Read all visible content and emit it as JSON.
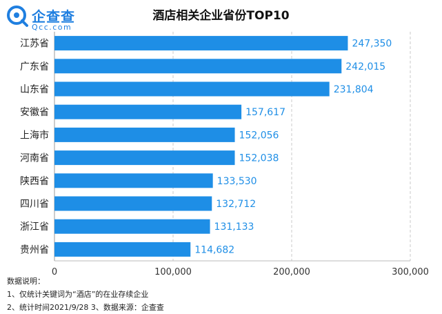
{
  "logo": {
    "name": "企查查",
    "sub": "Qcc.com"
  },
  "title": "酒店相关企业省份TOP10",
  "chart_data": {
    "type": "bar",
    "orientation": "horizontal",
    "title": "酒店相关企业省份TOP10",
    "categories": [
      "江苏省",
      "广东省",
      "山东省",
      "安徽省",
      "上海市",
      "河南省",
      "陕西省",
      "四川省",
      "浙江省",
      "贵州省"
    ],
    "values": [
      247350,
      242015,
      231804,
      157617,
      152056,
      152038,
      133530,
      132712,
      131133,
      114682
    ],
    "value_labels": [
      "247,350",
      "242,015",
      "231,804",
      "157,617",
      "152,056",
      "152,038",
      "133,530",
      "132,712",
      "131,133",
      "114,682"
    ],
    "xlim": [
      0,
      300000
    ],
    "x_ticks": [
      "0",
      "100,000",
      "200,000",
      "300,000"
    ],
    "x_tick_values": [
      0,
      100000,
      200000,
      300000
    ],
    "grid": "vertical dashed",
    "bar_color": "#1e8ee6",
    "label_color": "#1e8ee6"
  },
  "notes": {
    "heading": "数据说明：",
    "line1": "1、仅统计关键词为“酒店”的在业存续企业",
    "line2": "2、统计时间2021/9/28  3、数据来源：企查查"
  }
}
